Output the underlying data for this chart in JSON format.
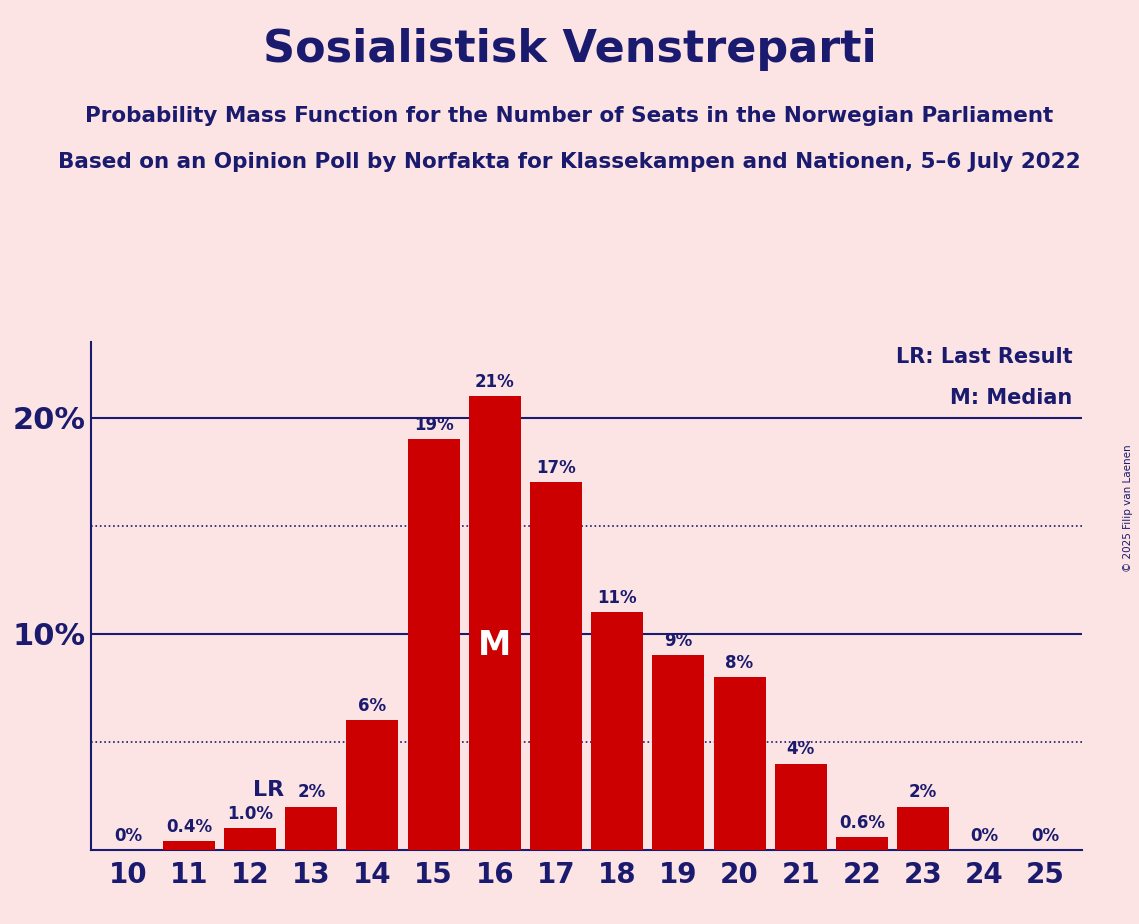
{
  "title": "Sosialistisk Venstreparti",
  "subtitle1": "Probability Mass Function for the Number of Seats in the Norwegian Parliament",
  "subtitle2": "Based on an Opinion Poll by Norfakta for Klassekampen and Nationen, 5–6 July 2022",
  "copyright": "© 2025 Filip van Laenen",
  "seats": [
    10,
    11,
    12,
    13,
    14,
    15,
    16,
    17,
    18,
    19,
    20,
    21,
    22,
    23,
    24,
    25
  ],
  "probabilities": [
    0.0,
    0.4,
    1.0,
    2.0,
    6.0,
    19.0,
    21.0,
    17.0,
    11.0,
    9.0,
    8.0,
    4.0,
    0.6,
    2.0,
    0.0,
    0.0
  ],
  "labels": [
    "0%",
    "0.4%",
    "1.0%",
    "2%",
    "6%",
    "19%",
    "21%",
    "17%",
    "11%",
    "9%",
    "8%",
    "4%",
    "0.6%",
    "2%",
    "0%",
    "0%"
  ],
  "bar_color": "#cc0000",
  "background_color": "#fce4e4",
  "title_color": "#1a1a6e",
  "label_color": "#1a1a6e",
  "axis_color": "#1a1a6e",
  "median_seat": 16,
  "lr_seat": 13,
  "ylim_max": 23.5,
  "hlines": [
    10.0,
    20.0
  ],
  "dotted_hlines": [
    5.0,
    15.0
  ],
  "legend_lr": "LR: Last Result",
  "legend_m": "M: Median"
}
